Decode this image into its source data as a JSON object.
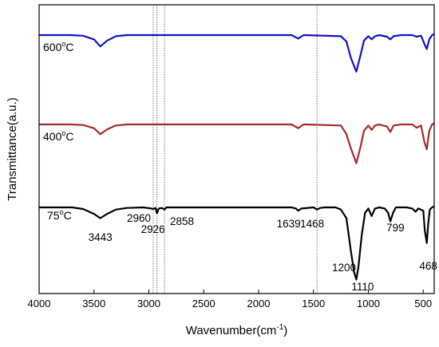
{
  "chart_data": {
    "type": "line",
    "xlabel": "Wavenumber(cm",
    "xlabel_sup": "-1",
    "xlabel_end": ")",
    "ylabel": "Transmittance(a.u.)",
    "xlim": [
      4000,
      400
    ],
    "x_reversed": true,
    "x_ticks": [
      4000,
      3500,
      3000,
      2500,
      2000,
      1500,
      1000,
      500
    ],
    "y_ticks": "none",
    "grid": false,
    "legend": "none",
    "reference_lines": [
      2960,
      2926,
      2858,
      1468
    ],
    "series": [
      {
        "name": "600",
        "name_sup": "o",
        "name_end": "C",
        "color": "#1111cc",
        "points": [
          [
            4000,
            0
          ],
          [
            3720,
            0
          ],
          [
            3600,
            -0.6
          ],
          [
            3500,
            -4
          ],
          [
            3443,
            -10.5
          ],
          [
            3380,
            -5
          ],
          [
            3300,
            -1
          ],
          [
            3200,
            0
          ],
          [
            1700,
            0
          ],
          [
            1639,
            -3.2
          ],
          [
            1590,
            0
          ],
          [
            1250,
            -1
          ],
          [
            1200,
            -6
          ],
          [
            1160,
            -21
          ],
          [
            1110,
            -34
          ],
          [
            1070,
            -18
          ],
          [
            1040,
            -5
          ],
          [
            1000,
            -1
          ],
          [
            970,
            -4
          ],
          [
            940,
            -1
          ],
          [
            900,
            0
          ],
          [
            830,
            -1.5
          ],
          [
            799,
            -4
          ],
          [
            770,
            -1
          ],
          [
            700,
            0
          ],
          [
            600,
            0
          ],
          [
            560,
            -1.5
          ],
          [
            520,
            -0.5
          ],
          [
            490,
            -8
          ],
          [
            468,
            -13
          ],
          [
            445,
            -4
          ],
          [
            420,
            0
          ],
          [
            400,
            1
          ]
        ]
      },
      {
        "name": "400",
        "name_sup": "o",
        "name_end": "C",
        "color": "#a52a2a",
        "points": [
          [
            4000,
            0
          ],
          [
            3720,
            0
          ],
          [
            3600,
            -0.5
          ],
          [
            3500,
            -3.5
          ],
          [
            3443,
            -9
          ],
          [
            3380,
            -4.5
          ],
          [
            3300,
            -1
          ],
          [
            3200,
            0
          ],
          [
            1700,
            0
          ],
          [
            1639,
            -3.5
          ],
          [
            1590,
            0
          ],
          [
            1250,
            -1
          ],
          [
            1200,
            -9
          ],
          [
            1160,
            -22
          ],
          [
            1110,
            -36
          ],
          [
            1070,
            -20
          ],
          [
            1040,
            -6
          ],
          [
            1000,
            -1
          ],
          [
            970,
            -5
          ],
          [
            940,
            -1
          ],
          [
            900,
            0
          ],
          [
            830,
            -2
          ],
          [
            799,
            -7
          ],
          [
            770,
            -1
          ],
          [
            700,
            0
          ],
          [
            600,
            0
          ],
          [
            560,
            -3
          ],
          [
            520,
            -1
          ],
          [
            490,
            -16
          ],
          [
            468,
            -23
          ],
          [
            445,
            -6
          ],
          [
            420,
            0
          ],
          [
            400,
            1
          ]
        ]
      },
      {
        "name": "75",
        "name_sup": "o",
        "name_end": "C",
        "color": "#000000",
        "points": [
          [
            4000,
            0
          ],
          [
            3700,
            0
          ],
          [
            3600,
            -1.5
          ],
          [
            3500,
            -6
          ],
          [
            3443,
            -10
          ],
          [
            3380,
            -6
          ],
          [
            3300,
            -2
          ],
          [
            3200,
            -0.5
          ],
          [
            3050,
            0
          ],
          [
            2990,
            -0.8
          ],
          [
            2960,
            -1.5
          ],
          [
            2940,
            -0.5
          ],
          [
            2926,
            -5.5
          ],
          [
            2910,
            -1
          ],
          [
            2880,
            -0.5
          ],
          [
            2858,
            -2
          ],
          [
            2840,
            0
          ],
          [
            1700,
            0
          ],
          [
            1660,
            -1
          ],
          [
            1639,
            -3
          ],
          [
            1610,
            -1
          ],
          [
            1500,
            0
          ],
          [
            1468,
            -2
          ],
          [
            1440,
            -0.5
          ],
          [
            1400,
            0
          ],
          [
            1300,
            0
          ],
          [
            1250,
            -2
          ],
          [
            1200,
            -10
          ],
          [
            1160,
            -40
          ],
          [
            1130,
            -60
          ],
          [
            1110,
            -67
          ],
          [
            1090,
            -55
          ],
          [
            1060,
            -25
          ],
          [
            1030,
            -5
          ],
          [
            1000,
            -1
          ],
          [
            970,
            -8
          ],
          [
            940,
            -1
          ],
          [
            900,
            0
          ],
          [
            850,
            -1
          ],
          [
            820,
            -5
          ],
          [
            799,
            -13
          ],
          [
            775,
            -5
          ],
          [
            750,
            0
          ],
          [
            650,
            0
          ],
          [
            600,
            -1
          ],
          [
            570,
            -4
          ],
          [
            545,
            -1
          ],
          [
            500,
            -3
          ],
          [
            485,
            -22
          ],
          [
            468,
            -33
          ],
          [
            455,
            -16
          ],
          [
            440,
            -2
          ],
          [
            420,
            0
          ],
          [
            400,
            1
          ]
        ]
      }
    ],
    "annotations": [
      {
        "text": "3443",
        "x": 3443,
        "series": 2
      },
      {
        "text": "2960",
        "x": 2960,
        "series": 2
      },
      {
        "text": "2926",
        "x": 2926,
        "series": 2
      },
      {
        "text": "2858",
        "x": 2858,
        "series": 2
      },
      {
        "text": "1639",
        "x": 1639,
        "series": 2
      },
      {
        "text": "1468",
        "x": 1468,
        "series": 2
      },
      {
        "text": "1200",
        "x": 1200,
        "series": 2
      },
      {
        "text": "1110",
        "x": 1110,
        "series": 2
      },
      {
        "text": "799",
        "x": 799,
        "series": 2
      },
      {
        "text": "468",
        "x": 468,
        "series": 2
      }
    ]
  }
}
